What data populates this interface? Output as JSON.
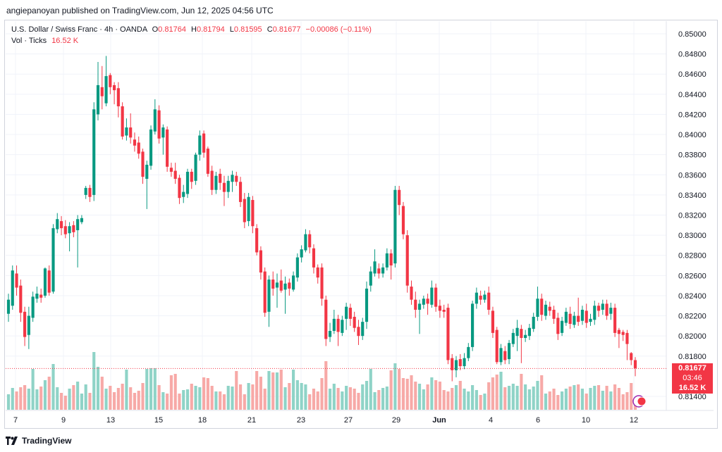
{
  "header": {
    "publisher_line": "angiepanoyan published on TradingView.com, Jun 12, 2025 04:56 UTC"
  },
  "legend": {
    "symbol": "U.S. Dollar / Swiss Franc · 4h · OANDA",
    "open_key": "O",
    "open": "0.81764",
    "high_key": "H",
    "high": "0.81794",
    "low_key": "L",
    "low": "0.81595",
    "close_key": "C",
    "close": "0.81677",
    "change": "−0.00086 (−0.11%)",
    "volume_label": "Vol · Ticks",
    "volume_value": "16.52 K"
  },
  "price_tags": {
    "last_price": "0.81677",
    "countdown": "03:46",
    "volume": "16.52 K"
  },
  "footer": {
    "brand": "TradingView"
  },
  "colors": {
    "up": "#089981",
    "down": "#f23645",
    "vol_up": "#8fd3c7",
    "vol_down": "#f7a9a7",
    "grid": "#f0f3fa"
  },
  "chart_data": {
    "type": "candlestick",
    "title": "U.S. Dollar / Swiss Franc · 4h · OANDA",
    "y_axis": {
      "range": [
        0.813,
        0.8515
      ],
      "ticks": [
        "0.85000",
        "0.84800",
        "0.84600",
        "0.84400",
        "0.84200",
        "0.84000",
        "0.83800",
        "0.83600",
        "0.83400",
        "0.83200",
        "0.83000",
        "0.82800",
        "0.82600",
        "0.82400",
        "0.82200",
        "0.82000",
        "0.81800",
        "0.81400"
      ]
    },
    "x_axis": {
      "tick_labels": [
        "7",
        "9",
        "13",
        "15",
        "18",
        "21",
        "23",
        "27",
        "29",
        "Jun",
        "4",
        "6",
        "10",
        "12"
      ]
    },
    "volume_max": 14,
    "candles": [
      {
        "o": 0.8222,
        "c": 0.8236,
        "h": 0.8242,
        "l": 0.8214,
        "v": 2.2
      },
      {
        "o": 0.823,
        "c": 0.8265,
        "h": 0.827,
        "l": 0.8226,
        "v": 3.1
      },
      {
        "o": 0.8262,
        "c": 0.8248,
        "h": 0.827,
        "l": 0.824,
        "v": 2.6
      },
      {
        "o": 0.825,
        "c": 0.8223,
        "h": 0.8256,
        "l": 0.8214,
        "v": 3.2
      },
      {
        "o": 0.8224,
        "c": 0.8199,
        "h": 0.8229,
        "l": 0.819,
        "v": 3.5
      },
      {
        "o": 0.8201,
        "c": 0.822,
        "h": 0.8229,
        "l": 0.8187,
        "v": 3.0
      },
      {
        "o": 0.8218,
        "c": 0.8239,
        "h": 0.8244,
        "l": 0.8214,
        "v": 5.8
      },
      {
        "o": 0.8237,
        "c": 0.8242,
        "h": 0.8249,
        "l": 0.8233,
        "v": 2.9
      },
      {
        "o": 0.8241,
        "c": 0.8238,
        "h": 0.8247,
        "l": 0.8233,
        "v": 3.3
      },
      {
        "o": 0.824,
        "c": 0.8267,
        "h": 0.8268,
        "l": 0.8238,
        "v": 4.2
      },
      {
        "o": 0.8265,
        "c": 0.8243,
        "h": 0.827,
        "l": 0.824,
        "v": 4.7
      },
      {
        "o": 0.8244,
        "c": 0.8307,
        "h": 0.8311,
        "l": 0.8242,
        "v": 6.5
      },
      {
        "o": 0.8306,
        "c": 0.8316,
        "h": 0.8322,
        "l": 0.8302,
        "v": 3.2
      },
      {
        "o": 0.8314,
        "c": 0.8307,
        "h": 0.8319,
        "l": 0.83,
        "v": 2.4
      },
      {
        "o": 0.8309,
        "c": 0.8301,
        "h": 0.8315,
        "l": 0.8297,
        "v": 2.0
      },
      {
        "o": 0.8302,
        "c": 0.8309,
        "h": 0.8313,
        "l": 0.8284,
        "v": 3.0
      },
      {
        "o": 0.831,
        "c": 0.8303,
        "h": 0.8314,
        "l": 0.8298,
        "v": 3.5
      },
      {
        "o": 0.8305,
        "c": 0.8316,
        "h": 0.832,
        "l": 0.8268,
        "v": 4.0
      },
      {
        "o": 0.8313,
        "c": 0.8317,
        "h": 0.832,
        "l": 0.8311,
        "v": 2.3
      },
      {
        "o": 0.834,
        "c": 0.8347,
        "h": 0.8349,
        "l": 0.8336,
        "v": 3.6
      },
      {
        "o": 0.8347,
        "c": 0.8338,
        "h": 0.835,
        "l": 0.8333,
        "v": 2.4
      },
      {
        "o": 0.834,
        "c": 0.8425,
        "h": 0.8432,
        "l": 0.8334,
        "v": 8.2
      },
      {
        "o": 0.842,
        "c": 0.8449,
        "h": 0.8472,
        "l": 0.8414,
        "v": 6.1
      },
      {
        "o": 0.8447,
        "c": 0.8438,
        "h": 0.8468,
        "l": 0.8425,
        "v": 4.7
      },
      {
        "o": 0.8431,
        "c": 0.8458,
        "h": 0.8478,
        "l": 0.8428,
        "v": 3.0
      },
      {
        "o": 0.8459,
        "c": 0.8447,
        "h": 0.8461,
        "l": 0.844,
        "v": 3.4
      },
      {
        "o": 0.8449,
        "c": 0.8444,
        "h": 0.8452,
        "l": 0.843,
        "v": 2.5
      },
      {
        "o": 0.8446,
        "c": 0.8428,
        "h": 0.8452,
        "l": 0.8417,
        "v": 3.1
      },
      {
        "o": 0.8428,
        "c": 0.8398,
        "h": 0.8432,
        "l": 0.8395,
        "v": 3.7
      },
      {
        "o": 0.8399,
        "c": 0.8407,
        "h": 0.8416,
        "l": 0.8394,
        "v": 5.7
      },
      {
        "o": 0.8407,
        "c": 0.8397,
        "h": 0.8421,
        "l": 0.8391,
        "v": 3.2
      },
      {
        "o": 0.8395,
        "c": 0.8389,
        "h": 0.8402,
        "l": 0.8383,
        "v": 2.4
      },
      {
        "o": 0.8392,
        "c": 0.8381,
        "h": 0.8398,
        "l": 0.8376,
        "v": 2.7
      },
      {
        "o": 0.8383,
        "c": 0.8358,
        "h": 0.8386,
        "l": 0.8351,
        "v": 3.8
      },
      {
        "o": 0.8356,
        "c": 0.837,
        "h": 0.8374,
        "l": 0.8326,
        "v": 5.8
      },
      {
        "o": 0.8369,
        "c": 0.8405,
        "h": 0.8409,
        "l": 0.8365,
        "v": 5.9
      },
      {
        "o": 0.8403,
        "c": 0.8425,
        "h": 0.8435,
        "l": 0.84,
        "v": 5.9
      },
      {
        "o": 0.8424,
        "c": 0.8396,
        "h": 0.8429,
        "l": 0.8391,
        "v": 3.5
      },
      {
        "o": 0.8397,
        "c": 0.8407,
        "h": 0.841,
        "l": 0.838,
        "v": 2.5
      },
      {
        "o": 0.8405,
        "c": 0.8368,
        "h": 0.8408,
        "l": 0.8363,
        "v": 2.3
      },
      {
        "o": 0.8367,
        "c": 0.8363,
        "h": 0.8372,
        "l": 0.8358,
        "v": 4.9
      },
      {
        "o": 0.8364,
        "c": 0.8356,
        "h": 0.8372,
        "l": 0.8351,
        "v": 5.1
      },
      {
        "o": 0.8357,
        "c": 0.8337,
        "h": 0.836,
        "l": 0.8331,
        "v": 2.3
      },
      {
        "o": 0.8338,
        "c": 0.8343,
        "h": 0.835,
        "l": 0.8332,
        "v": 2.8
      },
      {
        "o": 0.8341,
        "c": 0.8363,
        "h": 0.8366,
        "l": 0.8337,
        "v": 2.9
      },
      {
        "o": 0.8363,
        "c": 0.8353,
        "h": 0.8366,
        "l": 0.8346,
        "v": 3.7
      },
      {
        "o": 0.8354,
        "c": 0.838,
        "h": 0.8382,
        "l": 0.835,
        "v": 3.4
      },
      {
        "o": 0.838,
        "c": 0.8399,
        "h": 0.8404,
        "l": 0.8374,
        "v": 3.2
      },
      {
        "o": 0.8401,
        "c": 0.8382,
        "h": 0.8404,
        "l": 0.8377,
        "v": 4.6
      },
      {
        "o": 0.8386,
        "c": 0.8361,
        "h": 0.8388,
        "l": 0.8358,
        "v": 4.5
      },
      {
        "o": 0.8364,
        "c": 0.8345,
        "h": 0.8369,
        "l": 0.834,
        "v": 3.4
      },
      {
        "o": 0.8345,
        "c": 0.8359,
        "h": 0.8363,
        "l": 0.8341,
        "v": 2.6
      },
      {
        "o": 0.8361,
        "c": 0.8352,
        "h": 0.8366,
        "l": 0.8345,
        "v": 2.6
      },
      {
        "o": 0.8352,
        "c": 0.8343,
        "h": 0.8359,
        "l": 0.8329,
        "v": 2.2
      },
      {
        "o": 0.8343,
        "c": 0.8354,
        "h": 0.8359,
        "l": 0.8337,
        "v": 3.4
      },
      {
        "o": 0.8353,
        "c": 0.836,
        "h": 0.8364,
        "l": 0.8343,
        "v": 3.3
      },
      {
        "o": 0.8359,
        "c": 0.8353,
        "h": 0.8363,
        "l": 0.8349,
        "v": 5.5
      },
      {
        "o": 0.8353,
        "c": 0.8333,
        "h": 0.8358,
        "l": 0.8328,
        "v": 3.6
      },
      {
        "o": 0.8336,
        "c": 0.8313,
        "h": 0.8342,
        "l": 0.8307,
        "v": 2.2
      },
      {
        "o": 0.8314,
        "c": 0.8338,
        "h": 0.8342,
        "l": 0.8309,
        "v": 3.8
      },
      {
        "o": 0.8335,
        "c": 0.8309,
        "h": 0.8339,
        "l": 0.8302,
        "v": 3.6
      },
      {
        "o": 0.8307,
        "c": 0.8283,
        "h": 0.8311,
        "l": 0.828,
        "v": 5.5
      },
      {
        "o": 0.8285,
        "c": 0.8263,
        "h": 0.8289,
        "l": 0.8256,
        "v": 4.7
      },
      {
        "o": 0.8264,
        "c": 0.8223,
        "h": 0.8268,
        "l": 0.8219,
        "v": 3.0
      },
      {
        "o": 0.8224,
        "c": 0.8256,
        "h": 0.826,
        "l": 0.8209,
        "v": 5.5
      },
      {
        "o": 0.8256,
        "c": 0.8247,
        "h": 0.8264,
        "l": 0.824,
        "v": 5.3
      },
      {
        "o": 0.8248,
        "c": 0.8253,
        "h": 0.8262,
        "l": 0.8228,
        "v": 5.3
      },
      {
        "o": 0.8255,
        "c": 0.8245,
        "h": 0.8266,
        "l": 0.8243,
        "v": 5.7
      },
      {
        "o": 0.8246,
        "c": 0.8252,
        "h": 0.8259,
        "l": 0.8222,
        "v": 3.2
      },
      {
        "o": 0.8253,
        "c": 0.8247,
        "h": 0.8257,
        "l": 0.824,
        "v": 3.8
      },
      {
        "o": 0.8246,
        "c": 0.826,
        "h": 0.8264,
        "l": 0.8244,
        "v": 5.7
      },
      {
        "o": 0.8258,
        "c": 0.8278,
        "h": 0.8282,
        "l": 0.8254,
        "v": 4.2
      },
      {
        "o": 0.8278,
        "c": 0.8286,
        "h": 0.829,
        "l": 0.8273,
        "v": 3.8
      },
      {
        "o": 0.8285,
        "c": 0.8301,
        "h": 0.8306,
        "l": 0.8283,
        "v": 3.6
      },
      {
        "o": 0.8301,
        "c": 0.8288,
        "h": 0.8305,
        "l": 0.8282,
        "v": 2.2
      },
      {
        "o": 0.8287,
        "c": 0.8268,
        "h": 0.8291,
        "l": 0.8262,
        "v": 3.0
      },
      {
        "o": 0.8268,
        "c": 0.8258,
        "h": 0.8271,
        "l": 0.8252,
        "v": 2.6
      },
      {
        "o": 0.8268,
        "c": 0.8237,
        "h": 0.8272,
        "l": 0.823,
        "v": 4.5
      },
      {
        "o": 0.8236,
        "c": 0.8197,
        "h": 0.824,
        "l": 0.819,
        "v": 6.9
      },
      {
        "o": 0.8199,
        "c": 0.8205,
        "h": 0.8213,
        "l": 0.8194,
        "v": 3.0
      },
      {
        "o": 0.8205,
        "c": 0.8217,
        "h": 0.8226,
        "l": 0.8202,
        "v": 3.7
      },
      {
        "o": 0.8217,
        "c": 0.8204,
        "h": 0.8221,
        "l": 0.819,
        "v": 3.1
      },
      {
        "o": 0.8203,
        "c": 0.8216,
        "h": 0.822,
        "l": 0.82,
        "v": 2.6
      },
      {
        "o": 0.8217,
        "c": 0.8229,
        "h": 0.8233,
        "l": 0.8206,
        "v": 3.4
      },
      {
        "o": 0.8228,
        "c": 0.8217,
        "h": 0.8232,
        "l": 0.821,
        "v": 3.2
      },
      {
        "o": 0.8219,
        "c": 0.8208,
        "h": 0.8224,
        "l": 0.8204,
        "v": 3.0
      },
      {
        "o": 0.8209,
        "c": 0.82,
        "h": 0.8216,
        "l": 0.8191,
        "v": 2.4
      },
      {
        "o": 0.82,
        "c": 0.8214,
        "h": 0.8218,
        "l": 0.8196,
        "v": 3.6
      },
      {
        "o": 0.8214,
        "c": 0.8247,
        "h": 0.8254,
        "l": 0.8207,
        "v": 4.1
      },
      {
        "o": 0.825,
        "c": 0.8264,
        "h": 0.8269,
        "l": 0.8244,
        "v": 5.8
      },
      {
        "o": 0.8262,
        "c": 0.8274,
        "h": 0.8286,
        "l": 0.8259,
        "v": 2.5
      },
      {
        "o": 0.8267,
        "c": 0.8262,
        "h": 0.8272,
        "l": 0.8257,
        "v": 2.8
      },
      {
        "o": 0.8262,
        "c": 0.8268,
        "h": 0.8272,
        "l": 0.8258,
        "v": 3.1
      },
      {
        "o": 0.8268,
        "c": 0.8282,
        "h": 0.8287,
        "l": 0.8265,
        "v": 3.3
      },
      {
        "o": 0.8282,
        "c": 0.827,
        "h": 0.8286,
        "l": 0.8256,
        "v": 5.6
      },
      {
        "o": 0.8272,
        "c": 0.8345,
        "h": 0.8349,
        "l": 0.8268,
        "v": 6.6
      },
      {
        "o": 0.8345,
        "c": 0.833,
        "h": 0.8349,
        "l": 0.832,
        "v": 5.8
      },
      {
        "o": 0.8329,
        "c": 0.8301,
        "h": 0.8333,
        "l": 0.8296,
        "v": 4.5
      },
      {
        "o": 0.83,
        "c": 0.825,
        "h": 0.8305,
        "l": 0.8243,
        "v": 4.4
      },
      {
        "o": 0.8249,
        "c": 0.8236,
        "h": 0.8255,
        "l": 0.8231,
        "v": 4.9
      },
      {
        "o": 0.8236,
        "c": 0.8226,
        "h": 0.8244,
        "l": 0.8218,
        "v": 4.0
      },
      {
        "o": 0.8226,
        "c": 0.8232,
        "h": 0.8236,
        "l": 0.8202,
        "v": 3.7
      },
      {
        "o": 0.8231,
        "c": 0.8237,
        "h": 0.824,
        "l": 0.8227,
        "v": 2.9
      },
      {
        "o": 0.8237,
        "c": 0.8232,
        "h": 0.8242,
        "l": 0.8221,
        "v": 3.6
      },
      {
        "o": 0.8231,
        "c": 0.8248,
        "h": 0.8255,
        "l": 0.8228,
        "v": 4.6
      },
      {
        "o": 0.8248,
        "c": 0.8229,
        "h": 0.8252,
        "l": 0.8224,
        "v": 4.2
      },
      {
        "o": 0.823,
        "c": 0.8225,
        "h": 0.8236,
        "l": 0.8218,
        "v": 4.0
      },
      {
        "o": 0.8226,
        "c": 0.8224,
        "h": 0.8231,
        "l": 0.8218,
        "v": 2.8
      },
      {
        "o": 0.8228,
        "c": 0.8176,
        "h": 0.8232,
        "l": 0.8172,
        "v": 2.6
      },
      {
        "o": 0.8178,
        "c": 0.8166,
        "h": 0.8182,
        "l": 0.8155,
        "v": 3.1
      },
      {
        "o": 0.8166,
        "c": 0.8176,
        "h": 0.818,
        "l": 0.8159,
        "v": 3.5
      },
      {
        "o": 0.8177,
        "c": 0.817,
        "h": 0.8182,
        "l": 0.8166,
        "v": 4.1
      },
      {
        "o": 0.817,
        "c": 0.8178,
        "h": 0.8183,
        "l": 0.8167,
        "v": 3.0
      },
      {
        "o": 0.8178,
        "c": 0.8189,
        "h": 0.8193,
        "l": 0.8175,
        "v": 2.6
      },
      {
        "o": 0.8189,
        "c": 0.8232,
        "h": 0.8235,
        "l": 0.8185,
        "v": 3.5
      },
      {
        "o": 0.8232,
        "c": 0.8243,
        "h": 0.8248,
        "l": 0.8227,
        "v": 2.8
      },
      {
        "o": 0.824,
        "c": 0.8236,
        "h": 0.8245,
        "l": 0.8231,
        "v": 2.1
      },
      {
        "o": 0.8236,
        "c": 0.8241,
        "h": 0.8245,
        "l": 0.8233,
        "v": 2.3
      },
      {
        "o": 0.8243,
        "c": 0.8226,
        "h": 0.8249,
        "l": 0.8221,
        "v": 3.9
      },
      {
        "o": 0.8225,
        "c": 0.8203,
        "h": 0.8229,
        "l": 0.8198,
        "v": 4.6
      },
      {
        "o": 0.8206,
        "c": 0.8174,
        "h": 0.8209,
        "l": 0.8172,
        "v": 5.0
      },
      {
        "o": 0.8174,
        "c": 0.8188,
        "h": 0.8192,
        "l": 0.8171,
        "v": 5.4
      },
      {
        "o": 0.8185,
        "c": 0.8176,
        "h": 0.819,
        "l": 0.8172,
        "v": 3.2
      },
      {
        "o": 0.8177,
        "c": 0.8193,
        "h": 0.8196,
        "l": 0.8172,
        "v": 3.4
      },
      {
        "o": 0.8192,
        "c": 0.8203,
        "h": 0.8207,
        "l": 0.8189,
        "v": 3.7
      },
      {
        "o": 0.82,
        "c": 0.8208,
        "h": 0.8216,
        "l": 0.8185,
        "v": 3.4
      },
      {
        "o": 0.8207,
        "c": 0.8198,
        "h": 0.8211,
        "l": 0.8173,
        "v": 5.1
      },
      {
        "o": 0.8198,
        "c": 0.8201,
        "h": 0.8206,
        "l": 0.8194,
        "v": 3.6
      },
      {
        "o": 0.82,
        "c": 0.8208,
        "h": 0.8212,
        "l": 0.8196,
        "v": 2.9
      },
      {
        "o": 0.8207,
        "c": 0.8219,
        "h": 0.8223,
        "l": 0.8204,
        "v": 3.3
      },
      {
        "o": 0.8219,
        "c": 0.8237,
        "h": 0.8249,
        "l": 0.8215,
        "v": 4.1
      },
      {
        "o": 0.8237,
        "c": 0.8221,
        "h": 0.8242,
        "l": 0.8215,
        "v": 4.9
      },
      {
        "o": 0.822,
        "c": 0.8231,
        "h": 0.8235,
        "l": 0.8216,
        "v": 2.3
      },
      {
        "o": 0.8229,
        "c": 0.8225,
        "h": 0.8234,
        "l": 0.822,
        "v": 2.6
      },
      {
        "o": 0.8226,
        "c": 0.8217,
        "h": 0.823,
        "l": 0.8212,
        "v": 3.0
      },
      {
        "o": 0.8218,
        "c": 0.8202,
        "h": 0.8223,
        "l": 0.8196,
        "v": 2.1
      },
      {
        "o": 0.8203,
        "c": 0.8215,
        "h": 0.8219,
        "l": 0.82,
        "v": 2.6
      },
      {
        "o": 0.8213,
        "c": 0.8224,
        "h": 0.8228,
        "l": 0.821,
        "v": 3.0
      },
      {
        "o": 0.8222,
        "c": 0.8212,
        "h": 0.8229,
        "l": 0.8207,
        "v": 3.3
      },
      {
        "o": 0.8211,
        "c": 0.822,
        "h": 0.8224,
        "l": 0.8208,
        "v": 3.5
      },
      {
        "o": 0.822,
        "c": 0.8214,
        "h": 0.8238,
        "l": 0.821,
        "v": 3.6
      },
      {
        "o": 0.8215,
        "c": 0.8226,
        "h": 0.823,
        "l": 0.8211,
        "v": 3.0
      },
      {
        "o": 0.8225,
        "c": 0.8213,
        "h": 0.8232,
        "l": 0.8208,
        "v": 2.3
      },
      {
        "o": 0.8214,
        "c": 0.8217,
        "h": 0.8222,
        "l": 0.821,
        "v": 3.1
      },
      {
        "o": 0.8216,
        "c": 0.823,
        "h": 0.8235,
        "l": 0.8211,
        "v": 3.4
      },
      {
        "o": 0.823,
        "c": 0.8225,
        "h": 0.8233,
        "l": 0.8219,
        "v": 3.5
      },
      {
        "o": 0.8226,
        "c": 0.8232,
        "h": 0.8236,
        "l": 0.8221,
        "v": 2.7
      },
      {
        "o": 0.8232,
        "c": 0.822,
        "h": 0.8236,
        "l": 0.8216,
        "v": 3.4
      },
      {
        "o": 0.8222,
        "c": 0.8228,
        "h": 0.8233,
        "l": 0.8216,
        "v": 2.6
      },
      {
        "o": 0.8228,
        "c": 0.8203,
        "h": 0.8232,
        "l": 0.8199,
        "v": 3.6
      },
      {
        "o": 0.8206,
        "c": 0.8202,
        "h": 0.8208,
        "l": 0.8188,
        "v": 3.1
      },
      {
        "o": 0.8204,
        "c": 0.8201,
        "h": 0.8206,
        "l": 0.8195,
        "v": 2.2
      },
      {
        "o": 0.8203,
        "c": 0.8192,
        "h": 0.8206,
        "l": 0.8176,
        "v": 2.5
      },
      {
        "o": 0.8183,
        "c": 0.8176,
        "h": 0.8184,
        "l": 0.8171,
        "v": 3.8
      },
      {
        "o": 0.8176,
        "c": 0.8168,
        "h": 0.8179,
        "l": 0.816,
        "v": 1.7
      }
    ]
  }
}
